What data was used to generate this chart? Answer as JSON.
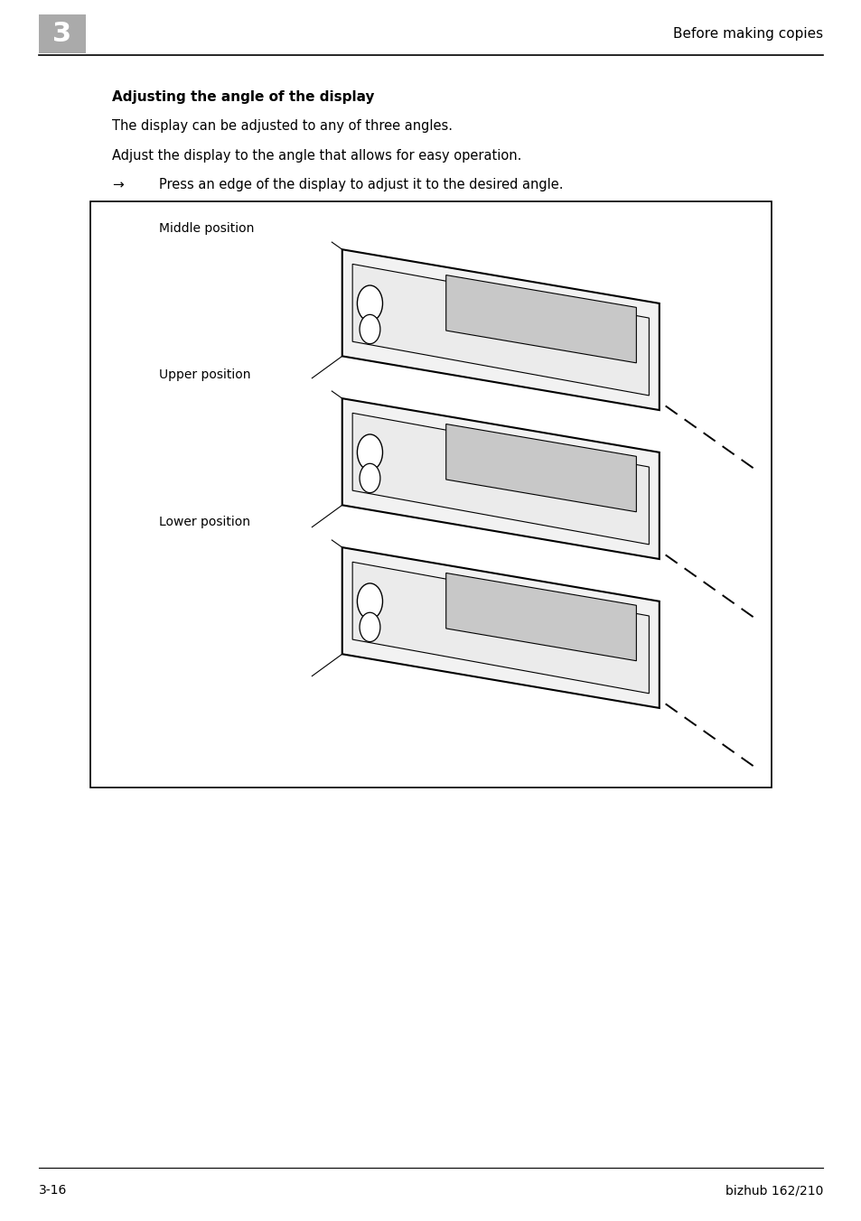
{
  "bg_color": "#ffffff",
  "page_width": 9.54,
  "page_height": 13.52,
  "header_number": "3",
  "header_title": "Before making copies",
  "footer_left": "3-16",
  "footer_right": "bizhub 162/210",
  "section_title": "Adjusting the angle of the display",
  "para1": "The display can be adjusted to any of three angles.",
  "para2": "Adjust the display to the angle that allows for easy operation.",
  "bullet_arrow": "→",
  "bullet_text": "Press an edge of the display to adjust it to the desired angle.",
  "label1": "Middle position",
  "label2": "Upper position",
  "label3": "Lower position"
}
